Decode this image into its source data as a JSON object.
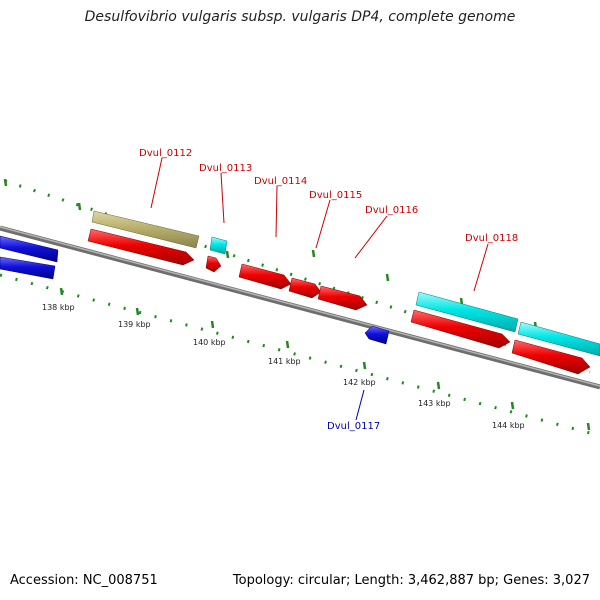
{
  "title": "Desulfovibrio vulgaris subsp. vulgaris DP4, complete genome",
  "footer": {
    "accession": "Accession: NC_008751",
    "summary": "Topology: circular; Length: 3,462,887 bp; Genes: 3,027"
  },
  "scale_labels": [
    "138 kbp",
    "139 kbp",
    "140 kbp",
    "141 kbp",
    "142 kbp",
    "143 kbp",
    "144 kbp"
  ],
  "gene_labels_top": [
    "Dvul_0112",
    "Dvul_0113",
    "Dvul_0114",
    "Dvul_0115",
    "Dvul_0116",
    "Dvul_0118"
  ],
  "gene_labels_bottom": [
    "Dvul_0117"
  ],
  "colors": {
    "cds_red": "#ee0000",
    "gene_cyan": "#00e5e5",
    "rna_tan": "#b8b06c",
    "other_blue": "#1010d8",
    "backbone": "#8a8a8a",
    "tick_green": "#228822",
    "label_red": "#cc0000",
    "label_blue": "#0000aa"
  }
}
